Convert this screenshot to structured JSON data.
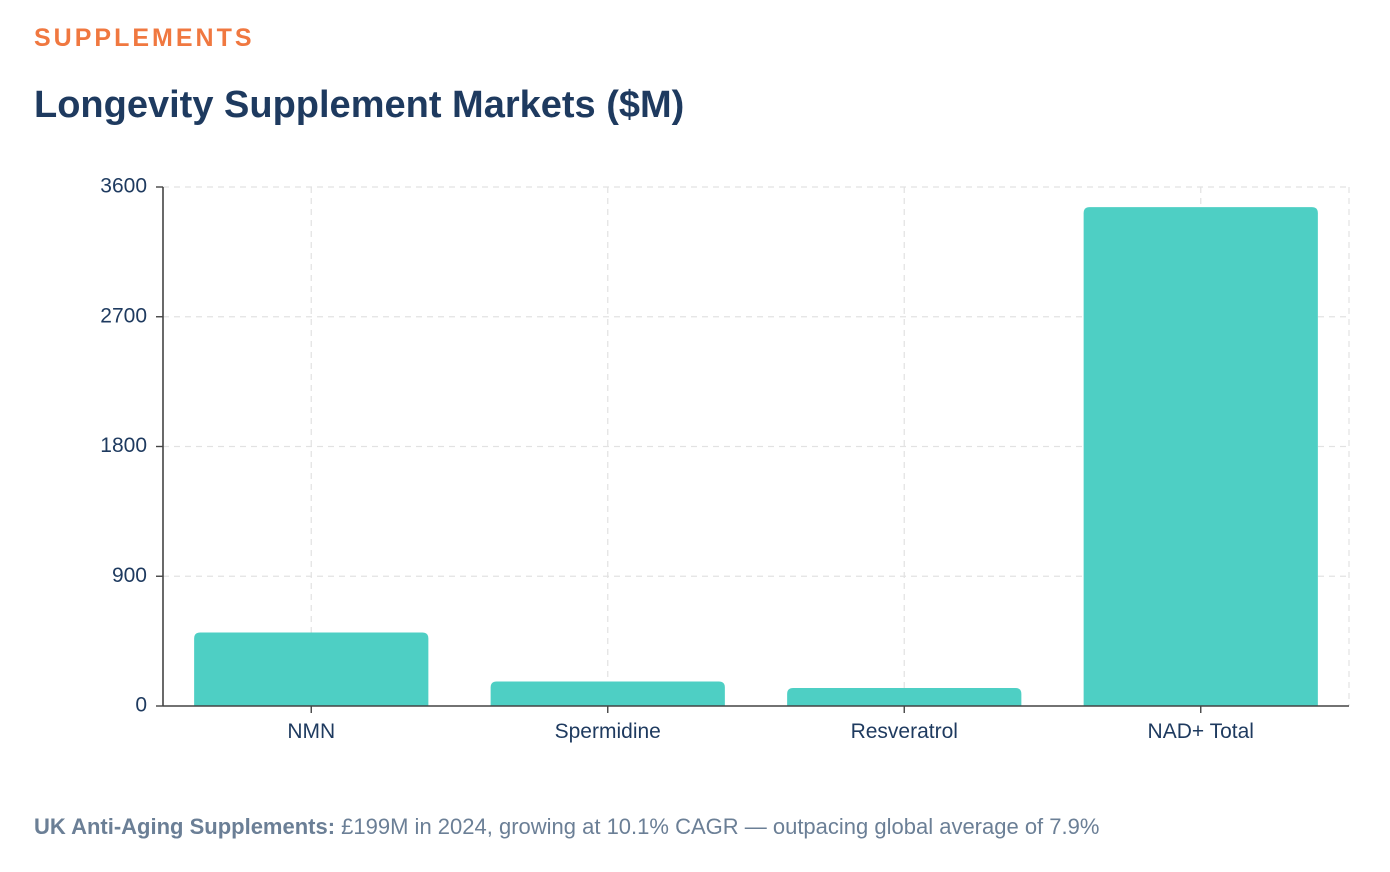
{
  "eyebrow": "SUPPLEMENTS",
  "colors": {
    "accent": "#f07840",
    "title": "#1e3a5f",
    "bar": "#4ecfc4",
    "grid": "#e2e2e2",
    "axis": "#444444",
    "footnote": "#6b7f96"
  },
  "chart_data": {
    "type": "bar",
    "title": "Longevity Supplement Markets ($M)",
    "categories": [
      "NMN",
      "Spermidine",
      "Resveratrol",
      "NAD+ Total"
    ],
    "values": [
      510,
      170,
      125,
      3460
    ],
    "yticks": [
      0,
      900,
      1800,
      2700,
      3600
    ],
    "ytick_labels": [
      "0",
      "900",
      "1800",
      "2700",
      "3600"
    ],
    "ylim": [
      0,
      3600
    ],
    "xlabel": "",
    "ylabel": "",
    "grid": true,
    "legend": false
  },
  "footnote": {
    "label": "UK Anti-Aging Supplements:",
    "text": " £199M in 2024, growing at 10.1% CAGR — outpacing global average of 7.9%"
  }
}
